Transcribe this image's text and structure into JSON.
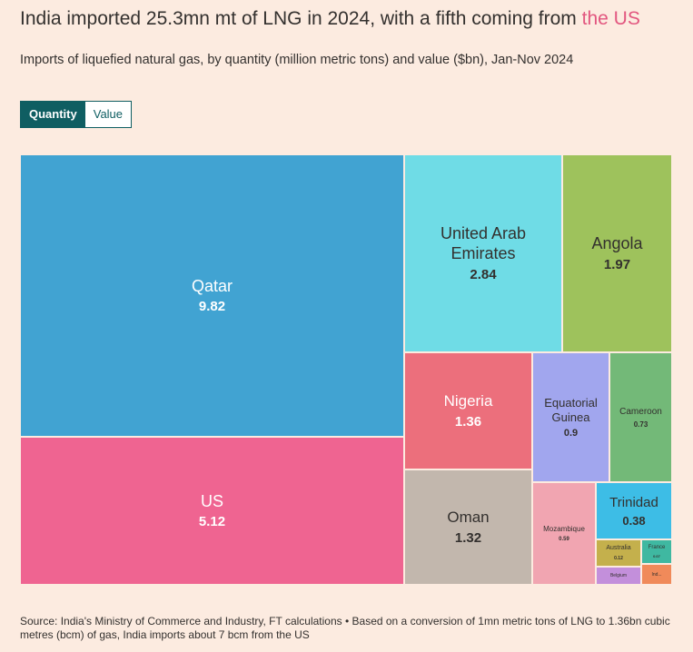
{
  "header": {
    "title_main": "India imported 25.3mn mt of LNG in 2024, with a fifth coming from ",
    "title_highlight": "the US",
    "subtitle": "Imports of liquefied natural gas, by quantity (million metric tons) and value ($bn), Jan-Nov 2024"
  },
  "toggle": {
    "quantity_label": "Quantity",
    "value_label": "Value",
    "selected": "Quantity"
  },
  "chart_data": {
    "type": "treemap",
    "title": "India imported 25.3mn mt of LNG in 2024, with a fifth coming from the US",
    "unit": "million metric tons",
    "items": [
      {
        "name": "Qatar",
        "value": 9.82,
        "label": "9.82",
        "color": "#41a3d2"
      },
      {
        "name": "US",
        "value": 5.12,
        "label": "5.12",
        "color": "#ef6491"
      },
      {
        "name": "United Arab Emirates",
        "value": 2.84,
        "label": "2.84",
        "color": "#6fdce6"
      },
      {
        "name": "Angola",
        "value": 1.97,
        "label": "1.97",
        "color": "#9ec25c"
      },
      {
        "name": "Nigeria",
        "value": 1.36,
        "label": "1.36",
        "color": "#ec6f7c"
      },
      {
        "name": "Oman",
        "value": 1.32,
        "label": "1.32",
        "color": "#c2b7ad"
      },
      {
        "name": "Equatorial Guinea",
        "value": 0.9,
        "label": "0.9",
        "color": "#a1a6ee"
      },
      {
        "name": "Cameroon",
        "value": 0.73,
        "label": "0.73",
        "color": "#73b978"
      },
      {
        "name": "Mozambique",
        "value": 0.59,
        "label": "0.59",
        "color": "#f1a5b1"
      },
      {
        "name": "Trinidad",
        "value": 0.38,
        "label": "0.38",
        "color": "#3dbde6"
      },
      {
        "name": "Australia",
        "value": 0.12,
        "label": "0.12",
        "color": "#c4b04c"
      },
      {
        "name": "France",
        "value": 0.07,
        "label": "0.07",
        "color": "#3fb8a1"
      },
      {
        "name": "Belgium",
        "value": null,
        "label": "",
        "color": "#c38fdb"
      },
      {
        "name": "Ind...",
        "value": null,
        "label": "",
        "color": "#f08a5a"
      }
    ]
  },
  "footer": {
    "source": "Source: India's Ministry of Commerce and Industry, FT calculations • Based on a conversion of 1mn metric tons of LNG to 1.36bn cubic metres (bcm) of gas, India imports about 7 bcm from the US"
  }
}
